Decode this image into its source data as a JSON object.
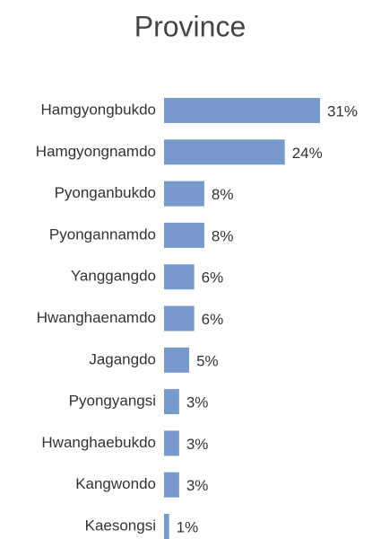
{
  "chart_data": {
    "type": "barh",
    "title": "Province",
    "categories": [
      "Hamgyongbukdo",
      "Hamgyongnamdo",
      "Pyonganbukdo",
      "Pyongannamdo",
      "Yanggangdo",
      "Hwanghaenamdo",
      "Jagangdo",
      "Pyongyangsi",
      "Hwanghaebukdo",
      "Kangwondo",
      "Kaesongsi"
    ],
    "values": [
      31,
      24,
      8,
      8,
      6,
      6,
      5,
      3,
      3,
      3,
      1
    ],
    "value_labels": [
      "31%",
      "24%",
      "8%",
      "8%",
      "6%",
      "6%",
      "5%",
      "3%",
      "3%",
      "3%",
      "1%"
    ],
    "color": "#7799cc"
  }
}
